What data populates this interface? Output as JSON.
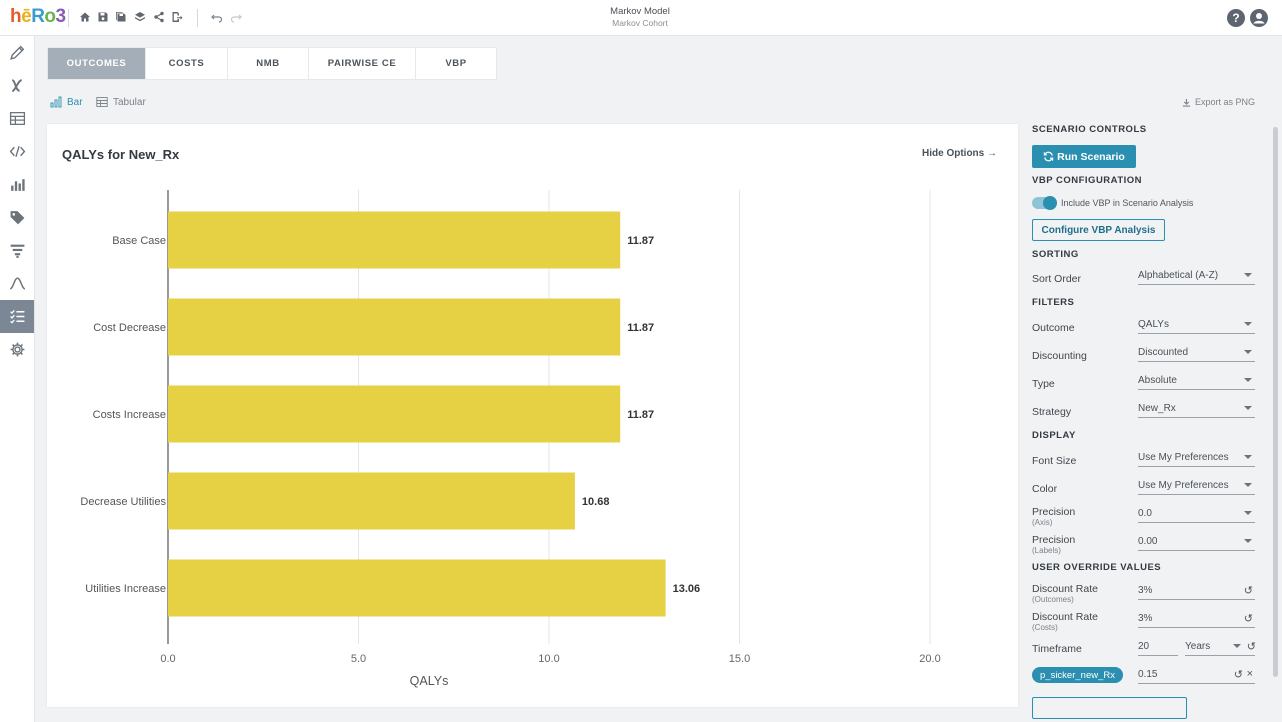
{
  "app": {
    "logo": "hēRo3",
    "title": "Markov Model",
    "subtitle": "Markov Cohort",
    "help_label": "?"
  },
  "toolbar": {
    "icons": [
      "home-icon",
      "save-icon",
      "save-as-icon",
      "layers-icon",
      "share-icon",
      "export-icon",
      "undo-icon",
      "redo-icon"
    ]
  },
  "nav": {
    "icons": [
      "pencil-icon",
      "variable-icon",
      "table-icon",
      "code-icon",
      "bar-chart-icon",
      "tag-icon",
      "funnel-icon",
      "distribution-icon",
      "scenario-icon",
      "gear-icon"
    ],
    "active_index": 8
  },
  "tabs": [
    {
      "label": "OUTCOMES",
      "active": true
    },
    {
      "label": "COSTS",
      "active": false
    },
    {
      "label": "NMB",
      "active": false
    },
    {
      "label": "PAIRWISE CE",
      "active": false
    },
    {
      "label": "VBP",
      "active": false
    }
  ],
  "view": {
    "bar_label": "Bar",
    "tabular_label": "Tabular",
    "export_label": "Export as PNG"
  },
  "chart": {
    "hide_options_label": "Hide Options →"
  },
  "chart_data": {
    "type": "bar",
    "orientation": "horizontal",
    "title": "QALYs for New_Rx",
    "categories": [
      "Base Case",
      "Cost Decrease",
      "Costs Increase",
      "Decrease Utilities",
      "Utilities Increase"
    ],
    "values": [
      11.87,
      11.87,
      11.87,
      10.68,
      13.06
    ],
    "value_labels": [
      "11.87",
      "11.87",
      "11.87",
      "10.68",
      "13.06"
    ],
    "xlabel": "QALYs",
    "xlim": [
      0,
      20
    ],
    "ticks": [
      0,
      5,
      10,
      15,
      20
    ],
    "tick_labels": [
      "0.0",
      "5.0",
      "10.0",
      "15.0",
      "20.0"
    ],
    "grid": true,
    "bar_color": "#e6d145"
  },
  "panel": {
    "scenario_controls": "SCENARIO CONTROLS",
    "run_label": "Run Scenario",
    "vbp_config": "VBP CONFIGURATION",
    "vbp_toggle_label": "Include VBP in Scenario Analysis",
    "vbp_toggle_on": true,
    "configure_vbp_label": "Configure VBP Analysis",
    "sorting": "SORTING",
    "sort_order_label": "Sort Order",
    "sort_order_value": "Alphabetical (A-Z)",
    "filters": "FILTERS",
    "outcome_label": "Outcome",
    "outcome_value": "QALYs",
    "discounting_label": "Discounting",
    "discounting_value": "Discounted",
    "type_label": "Type",
    "type_value": "Absolute",
    "strategy_label": "Strategy",
    "strategy_value": "New_Rx",
    "display": "DISPLAY",
    "font_size_label": "Font Size",
    "font_size_value": "Use My Preferences",
    "color_label": "Color",
    "color_value": "Use My Preferences",
    "precision_label": "Precision",
    "precision_axis_sub": "(Axis)",
    "precision_axis_value": "0.0",
    "precision_labels_sub": "(Labels)",
    "precision_labels_value": "0.00",
    "user_override": "USER OVERRIDE VALUES",
    "discount_rate_label": "Discount Rate",
    "discount_outcomes_sub": "(Outcomes)",
    "discount_outcomes_value": "3%",
    "discount_costs_sub": "(Costs)",
    "discount_costs_value": "3%",
    "timeframe_label": "Timeframe",
    "timeframe_value": "20",
    "timeframe_unit": "Years",
    "param_chip": "p_sicker_new_Rx",
    "param_value": "0.15"
  },
  "colors": {
    "accent": "#2a8fb0",
    "bar": "#e6d145",
    "tab_active": "#a3aeb9",
    "nav_active": "#7b8794"
  }
}
